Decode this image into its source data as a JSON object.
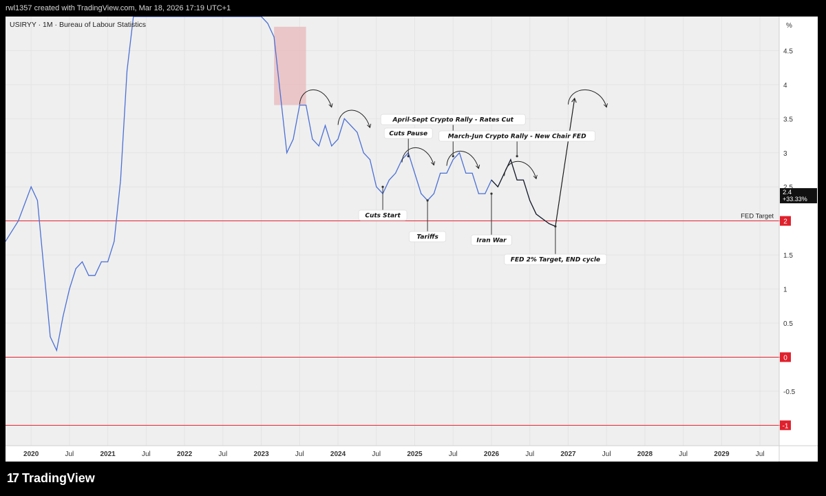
{
  "header": {
    "text": "rwl1357 created with TradingView.com, Mar 18, 2026 17:19 UTC+1"
  },
  "symbol": {
    "text": "USIRYY · 1M · Bureau of Labour Statistics"
  },
  "footer": {
    "brand": "TradingView"
  },
  "colors": {
    "line": "#4a6fd6",
    "fed_lines": "#e0202c",
    "highlight": "#e8b8bc",
    "plot_bg": "#efefef"
  },
  "chart_data": {
    "type": "line",
    "ylabel": "%",
    "ylim": [
      -1.3,
      5.0
    ],
    "yticks": [
      "4.5",
      "4",
      "3.5",
      "3",
      "2.5",
      "2",
      "1.5",
      "1",
      "0.5",
      "0",
      "-0.5",
      "-1"
    ],
    "xticks": [
      "2020",
      "Jul",
      "2021",
      "Jul",
      "2022",
      "Jul",
      "2023",
      "Jul",
      "2024",
      "Jul",
      "2025",
      "Jul",
      "2026",
      "Jul",
      "2027",
      "Jul",
      "2028",
      "Jul",
      "2029",
      "Jul"
    ],
    "xlim": [
      "2019-09",
      "2029-10"
    ],
    "series": [
      {
        "values": [
          [
            "2019-09",
            1.7
          ],
          [
            "2019-11",
            2.0
          ],
          [
            "2020-01",
            2.5
          ],
          [
            "2020-02",
            2.3
          ],
          [
            "2020-04",
            0.3
          ],
          [
            "2020-05",
            0.1
          ],
          [
            "2020-06",
            0.6
          ],
          [
            "2020-07",
            1.0
          ],
          [
            "2020-08",
            1.3
          ],
          [
            "2020-09",
            1.4
          ],
          [
            "2020-10",
            1.2
          ],
          [
            "2020-11",
            1.2
          ],
          [
            "2020-12",
            1.4
          ],
          [
            "2021-01",
            1.4
          ],
          [
            "2021-02",
            1.7
          ],
          [
            "2021-03",
            2.6
          ],
          [
            "2021-04",
            4.2
          ],
          [
            "2021-05",
            5.0
          ],
          [
            "2023-01",
            5.0
          ],
          [
            "2023-02",
            4.9
          ],
          [
            "2023-03",
            4.7
          ],
          [
            "2023-05",
            3.0
          ],
          [
            "2023-06",
            3.2
          ],
          [
            "2023-07",
            3.7
          ],
          [
            "2023-08",
            3.7
          ],
          [
            "2023-09",
            3.2
          ],
          [
            "2023-10",
            3.1
          ],
          [
            "2023-11",
            3.4
          ],
          [
            "2023-12",
            3.1
          ],
          [
            "2024-01",
            3.2
          ],
          [
            "2024-02",
            3.5
          ],
          [
            "2024-04",
            3.3
          ],
          [
            "2024-05",
            3.0
          ],
          [
            "2024-06",
            2.9
          ],
          [
            "2024-07",
            2.5
          ],
          [
            "2024-08",
            2.4
          ],
          [
            "2024-09",
            2.6
          ],
          [
            "2024-10",
            2.7
          ],
          [
            "2024-11",
            2.9
          ],
          [
            "2024-12",
            3.0
          ],
          [
            "2025-01",
            2.7
          ],
          [
            "2025-02",
            2.4
          ],
          [
            "2025-03",
            2.3
          ],
          [
            "2025-04",
            2.4
          ],
          [
            "2025-05",
            2.7
          ],
          [
            "2025-06",
            2.7
          ],
          [
            "2025-07",
            2.9
          ],
          [
            "2025-08",
            3.0
          ],
          [
            "2025-09",
            2.7
          ],
          [
            "2025-10",
            2.7
          ],
          [
            "2025-11",
            2.4
          ],
          [
            "2025-12",
            2.4
          ],
          [
            "2026-01",
            2.6
          ],
          [
            "2026-02",
            2.5
          ],
          [
            "2026-04",
            2.9
          ],
          [
            "2026-05",
            2.6
          ],
          [
            "2026-06",
            2.6
          ],
          [
            "2026-07",
            2.3
          ],
          [
            "2026-08",
            2.1
          ],
          [
            "2026-10",
            1.96
          ],
          [
            "2026-11",
            1.92
          ]
        ]
      }
    ],
    "projection": [
      [
        "2026-11",
        1.92
      ],
      [
        "2027-02",
        3.8
      ]
    ],
    "highlight_box": {
      "x": [
        "2023-03",
        "2023-08"
      ],
      "y": [
        3.7,
        4.85
      ]
    },
    "horizontal_lines": [
      {
        "y": 2,
        "label": "FED Target",
        "price_label": "2"
      },
      {
        "y": 0,
        "price_label": "0"
      },
      {
        "y": -1,
        "price_label": "-1"
      }
    ],
    "last_value": {
      "value": "2.4",
      "change": "+33.33%"
    },
    "annotations": [
      {
        "text": "Cuts Start",
        "x": "2024-08",
        "y": 2.5,
        "pos": "below"
      },
      {
        "text": "Cuts Pause",
        "x": "2024-12",
        "y": 2.95,
        "pos": "above"
      },
      {
        "text": "April-Sept Crypto Rally - Rates Cut",
        "x": "2025-07",
        "y": 2.95,
        "pos": "above"
      },
      {
        "text": "March-Jun Crypto Rally - New Chair FED",
        "x": "2026-05",
        "y": 2.95,
        "pos": "above"
      },
      {
        "text": "Tariffs",
        "x": "2025-03",
        "y": 2.3,
        "pos": "below"
      },
      {
        "text": "Iran War",
        "x": "2026-01",
        "y": 2.4,
        "pos": "below"
      },
      {
        "text": "FED 2% Target, END cycle",
        "x": "2026-11",
        "y": 1.92,
        "pos": "below"
      }
    ],
    "arcs": [
      {
        "x": [
          "2023-07",
          "2023-12"
        ],
        "y": 3.75
      },
      {
        "x": [
          "2024-01",
          "2024-06"
        ],
        "y": 3.45
      },
      {
        "x": [
          "2024-11",
          "2025-04"
        ],
        "y": 2.9
      },
      {
        "x": [
          "2025-06",
          "2025-11"
        ],
        "y": 2.85
      },
      {
        "x": [
          "2026-03",
          "2026-08"
        ],
        "y": 2.7
      },
      {
        "x": [
          "2027-01",
          "2027-07"
        ],
        "y": 3.75
      }
    ]
  }
}
